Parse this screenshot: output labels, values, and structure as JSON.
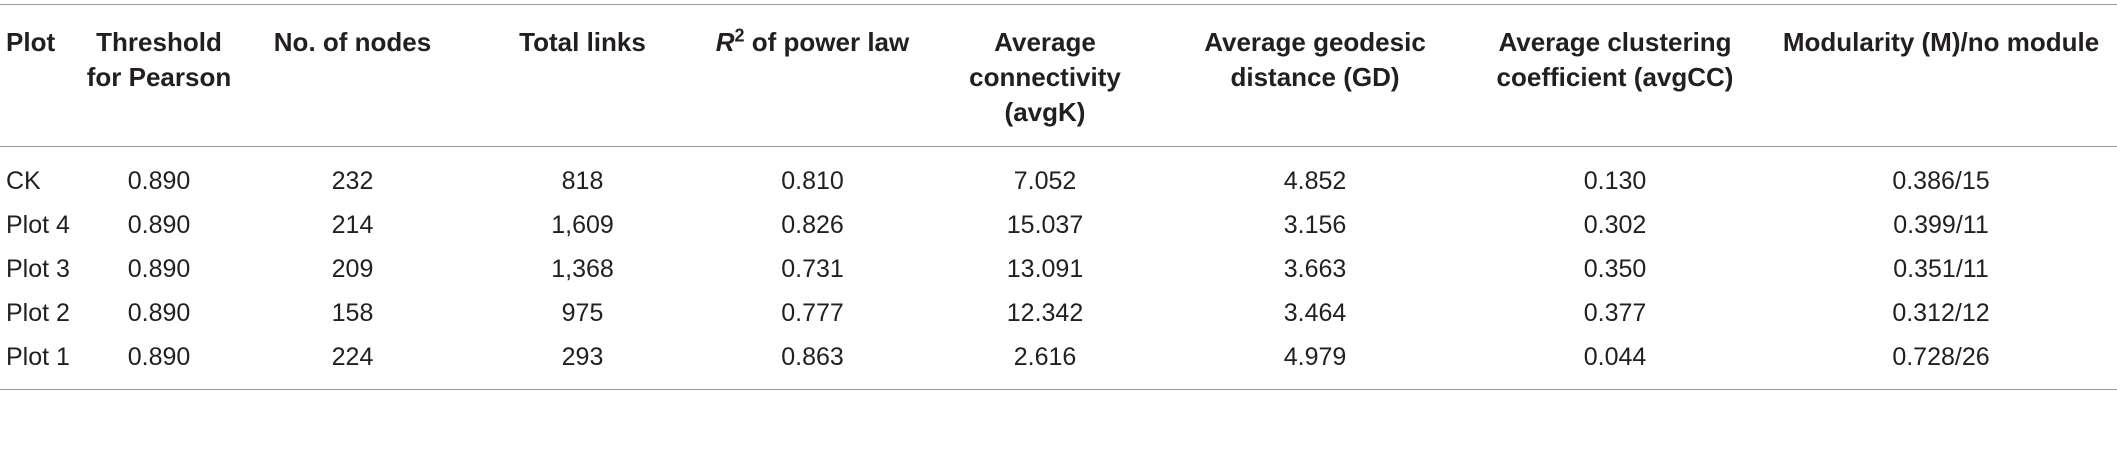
{
  "table": {
    "headers": [
      "Plot",
      "Threshold for Pearson",
      "No. of nodes",
      "Total links",
      "R2 of power law",
      "Average connectivity (avgK)",
      "Average geodesic distance (GD)",
      "Average clustering coefficient (avgCC)",
      "Modularity (M)/no module"
    ],
    "header_r2": {
      "symbol": "R",
      "superscript": "2",
      "rest": " of power law"
    },
    "rows": [
      [
        "CK",
        "0.890",
        "232",
        "818",
        "0.810",
        "7.052",
        "4.852",
        "0.130",
        "0.386/15"
      ],
      [
        "Plot 4",
        "0.890",
        "214",
        "1,609",
        "0.826",
        "15.037",
        "3.156",
        "0.302",
        "0.399/11"
      ],
      [
        "Plot 3",
        "0.890",
        "209",
        "1,368",
        "0.731",
        "13.091",
        "3.663",
        "0.350",
        "0.351/11"
      ],
      [
        "Plot 2",
        "0.890",
        "158",
        "975",
        "0.777",
        "12.342",
        "3.464",
        "0.377",
        "0.312/12"
      ],
      [
        "Plot 1",
        "0.890",
        "224",
        "293",
        "0.863",
        "2.616",
        "4.979",
        "0.044",
        "0.728/26"
      ]
    ]
  }
}
